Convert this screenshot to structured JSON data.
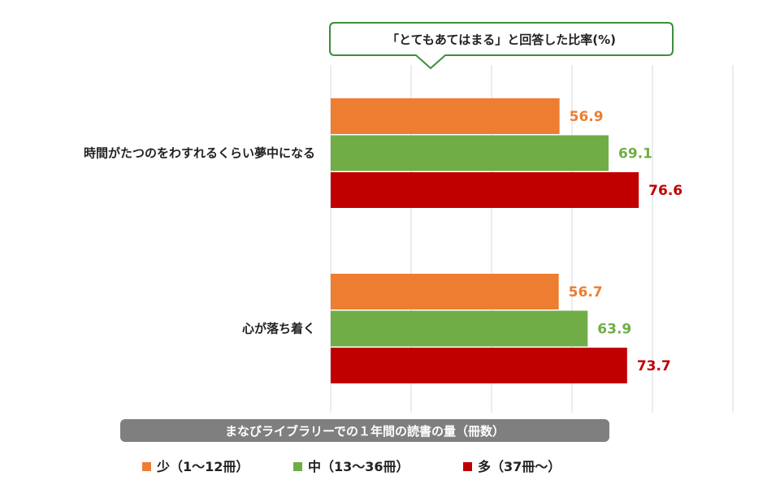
{
  "chart_data": {
    "type": "bar",
    "orientation": "horizontal",
    "title": "「とてもあてはまる」と回答した比率(%)",
    "xlabel": "まなびライブラリーでの１年間の読書の量（冊数）",
    "xlim": [
      0,
      100
    ],
    "grid": true,
    "legend_position": "bottom",
    "categories": [
      "時間がたつのをわすれるくらい夢中になる",
      "心が落ち着く"
    ],
    "series": [
      {
        "name": "少（1～12冊）",
        "color": "#ED7D31",
        "values": [
          56.9,
          56.7
        ],
        "labels": [
          "56.9",
          "56.7"
        ]
      },
      {
        "name": "中（13～36冊）",
        "color": "#70AD47",
        "values": [
          69.1,
          63.9
        ],
        "labels": [
          "69.1",
          "63.9"
        ]
      },
      {
        "name": "多（37冊～）",
        "color": "#C00000",
        "values": [
          76.6,
          73.7
        ],
        "labels": [
          "76.6",
          "73.7"
        ]
      }
    ]
  }
}
